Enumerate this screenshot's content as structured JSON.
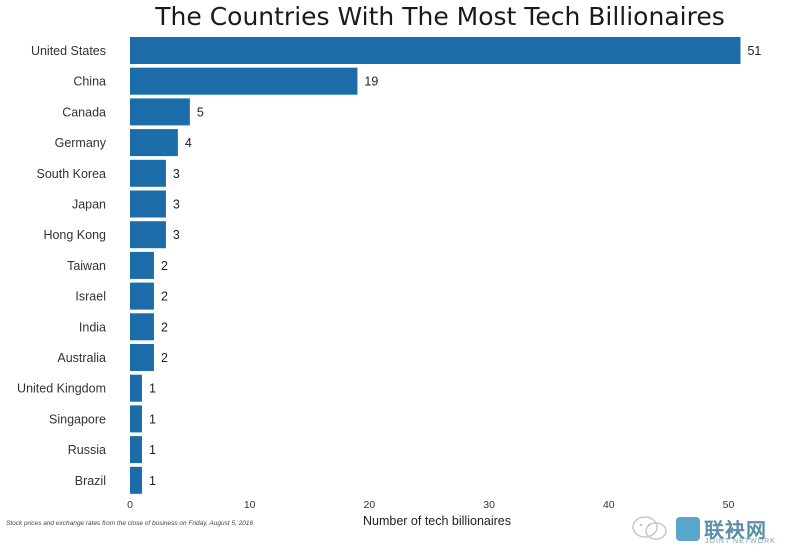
{
  "chart_data": {
    "type": "bar",
    "orientation": "horizontal",
    "title": "The Countries With The Most Tech Billionaires",
    "xlabel": "Number of tech billionaires",
    "ylabel": "",
    "categories": [
      "United States",
      "China",
      "Canada",
      "Germany",
      "South Korea",
      "Japan",
      "Hong Kong",
      "Taiwan",
      "Israel",
      "India",
      "Australia",
      "United Kingdom",
      "Singapore",
      "Russia",
      "Brazil"
    ],
    "values": [
      51,
      19,
      5,
      4,
      3,
      3,
      3,
      2,
      2,
      2,
      2,
      1,
      1,
      1,
      1
    ],
    "xlim": [
      0,
      51
    ],
    "xticks": [
      0,
      10,
      20,
      30,
      40,
      50
    ],
    "xtick_labels": [
      "0",
      "10",
      "20",
      "30",
      "40",
      "50"
    ],
    "grid": false,
    "bar_color": "#1b6ca8",
    "footnote": "Stock prices and exchange rates from the close of business on Friday, August 5, 2016"
  },
  "watermark": {
    "name": "联袂网",
    "sub": "JOINT NETWORK",
    "icon": "wechat-icon",
    "logo_color": "#5aa7c9"
  }
}
